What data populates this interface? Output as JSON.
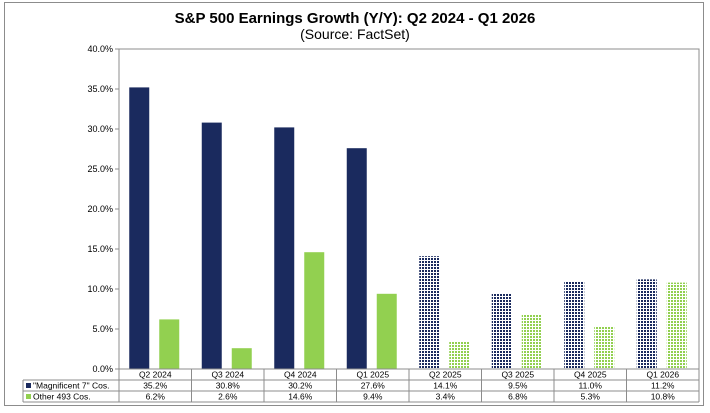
{
  "chart_data": {
    "type": "bar",
    "title": "S&P 500 Earnings Growth (Y/Y): Q2 2024 - Q1 2026",
    "subtitle": "(Source: FactSet)",
    "categories": [
      "Q2 2024",
      "Q3 2024",
      "Q4 2024",
      "Q1 2025",
      "Q2 2025",
      "Q3 2025",
      "Q4 2025",
      "Q1 2026"
    ],
    "estimate_start_index": 4,
    "series": [
      {
        "name": "\"Magnificent 7\" Cos.",
        "values": [
          35.2,
          30.8,
          30.2,
          27.6,
          14.1,
          9.5,
          11.0,
          11.2
        ],
        "labels": [
          "35.2%",
          "30.8%",
          "30.2%",
          "27.6%",
          "14.1%",
          "9.5%",
          "11.0%",
          "11.2%"
        ],
        "color": "#1a2a5e"
      },
      {
        "name": "Other 493 Cos.",
        "values": [
          6.2,
          2.6,
          14.6,
          9.4,
          3.4,
          6.8,
          5.3,
          10.8
        ],
        "labels": [
          "6.2%",
          "2.6%",
          "14.6%",
          "9.4%",
          "3.4%",
          "6.8%",
          "5.3%",
          "10.8%"
        ],
        "color": "#92d050"
      }
    ],
    "ylim": [
      0,
      40
    ],
    "yticks": [
      "0.0%",
      "5.0%",
      "10.0%",
      "15.0%",
      "20.0%",
      "25.0%",
      "30.0%",
      "35.0%",
      "40.0%"
    ],
    "grid": false,
    "legend": "data-table-left"
  }
}
